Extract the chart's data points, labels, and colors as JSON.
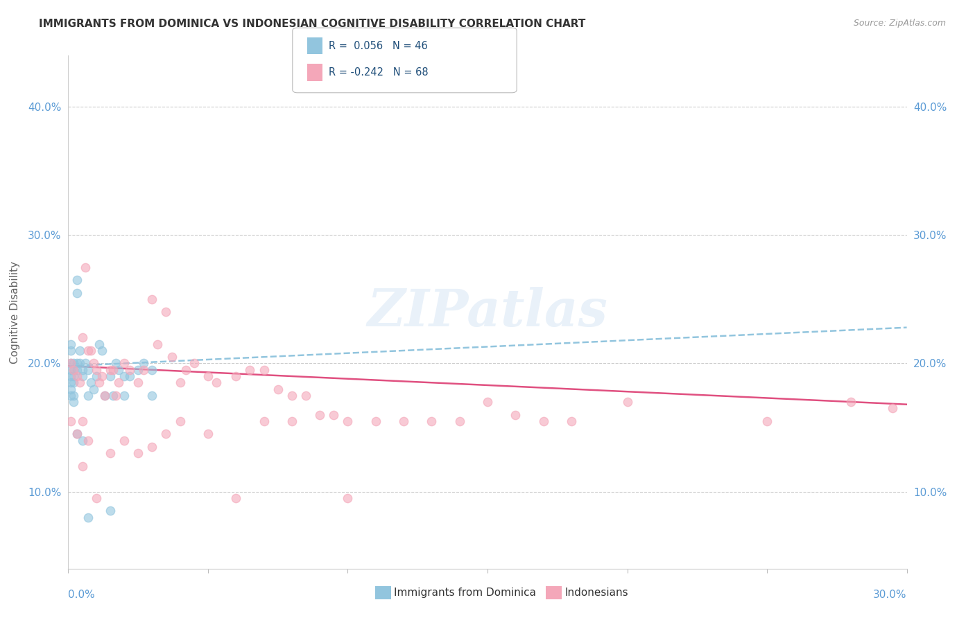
{
  "title": "IMMIGRANTS FROM DOMINICA VS INDONESIAN COGNITIVE DISABILITY CORRELATION CHART",
  "source": "Source: ZipAtlas.com",
  "ylabel": "Cognitive Disability",
  "yticks": [
    0.1,
    0.2,
    0.3,
    0.4
  ],
  "ytick_labels": [
    "10.0%",
    "20.0%",
    "30.0%",
    "40.0%"
  ],
  "xmin": 0.0,
  "xmax": 0.3,
  "ymin": 0.04,
  "ymax": 0.44,
  "legend_r1": "R =  0.056",
  "legend_n1": "N = 46",
  "legend_r2": "R = -0.242",
  "legend_n2": "N = 68",
  "color_blue": "#92C5DE",
  "color_pink": "#F4A7B9",
  "trendline_blue_x0": 0.0,
  "trendline_blue_y0": 0.198,
  "trendline_blue_x1": 0.3,
  "trendline_blue_y1": 0.228,
  "trendline_pink_x0": 0.0,
  "trendline_pink_y0": 0.198,
  "trendline_pink_x1": 0.3,
  "trendline_pink_y1": 0.168,
  "watermark": "ZIPatlas",
  "blue_points": [
    [
      0.001,
      0.2
    ],
    [
      0.001,
      0.195
    ],
    [
      0.001,
      0.19
    ],
    [
      0.001,
      0.185
    ],
    [
      0.001,
      0.21
    ],
    [
      0.001,
      0.215
    ],
    [
      0.001,
      0.18
    ],
    [
      0.001,
      0.175
    ],
    [
      0.002,
      0.2
    ],
    [
      0.002,
      0.195
    ],
    [
      0.002,
      0.19
    ],
    [
      0.002,
      0.185
    ],
    [
      0.002,
      0.175
    ],
    [
      0.002,
      0.17
    ],
    [
      0.003,
      0.265
    ],
    [
      0.003,
      0.255
    ],
    [
      0.003,
      0.2
    ],
    [
      0.003,
      0.195
    ],
    [
      0.004,
      0.21
    ],
    [
      0.004,
      0.2
    ],
    [
      0.005,
      0.195
    ],
    [
      0.005,
      0.19
    ],
    [
      0.006,
      0.2
    ],
    [
      0.007,
      0.195
    ],
    [
      0.007,
      0.175
    ],
    [
      0.008,
      0.185
    ],
    [
      0.009,
      0.18
    ],
    [
      0.01,
      0.19
    ],
    [
      0.011,
      0.215
    ],
    [
      0.012,
      0.21
    ],
    [
      0.013,
      0.175
    ],
    [
      0.015,
      0.19
    ],
    [
      0.016,
      0.175
    ],
    [
      0.017,
      0.2
    ],
    [
      0.018,
      0.195
    ],
    [
      0.02,
      0.19
    ],
    [
      0.022,
      0.19
    ],
    [
      0.025,
      0.195
    ],
    [
      0.027,
      0.2
    ],
    [
      0.03,
      0.195
    ],
    [
      0.003,
      0.145
    ],
    [
      0.005,
      0.14
    ],
    [
      0.007,
      0.08
    ],
    [
      0.015,
      0.085
    ],
    [
      0.02,
      0.175
    ],
    [
      0.03,
      0.175
    ]
  ],
  "pink_points": [
    [
      0.001,
      0.2
    ],
    [
      0.002,
      0.195
    ],
    [
      0.003,
      0.19
    ],
    [
      0.004,
      0.185
    ],
    [
      0.005,
      0.22
    ],
    [
      0.005,
      0.155
    ],
    [
      0.006,
      0.275
    ],
    [
      0.007,
      0.21
    ],
    [
      0.008,
      0.21
    ],
    [
      0.009,
      0.2
    ],
    [
      0.01,
      0.195
    ],
    [
      0.011,
      0.185
    ],
    [
      0.012,
      0.19
    ],
    [
      0.013,
      0.175
    ],
    [
      0.015,
      0.195
    ],
    [
      0.016,
      0.195
    ],
    [
      0.017,
      0.175
    ],
    [
      0.018,
      0.185
    ],
    [
      0.02,
      0.2
    ],
    [
      0.022,
      0.195
    ],
    [
      0.025,
      0.185
    ],
    [
      0.027,
      0.195
    ],
    [
      0.03,
      0.25
    ],
    [
      0.032,
      0.215
    ],
    [
      0.035,
      0.24
    ],
    [
      0.037,
      0.205
    ],
    [
      0.04,
      0.185
    ],
    [
      0.042,
      0.195
    ],
    [
      0.045,
      0.2
    ],
    [
      0.05,
      0.19
    ],
    [
      0.053,
      0.185
    ],
    [
      0.06,
      0.19
    ],
    [
      0.065,
      0.195
    ],
    [
      0.07,
      0.195
    ],
    [
      0.075,
      0.18
    ],
    [
      0.08,
      0.175
    ],
    [
      0.085,
      0.175
    ],
    [
      0.09,
      0.16
    ],
    [
      0.095,
      0.16
    ],
    [
      0.1,
      0.155
    ],
    [
      0.11,
      0.155
    ],
    [
      0.12,
      0.155
    ],
    [
      0.13,
      0.155
    ],
    [
      0.14,
      0.155
    ],
    [
      0.15,
      0.17
    ],
    [
      0.16,
      0.16
    ],
    [
      0.17,
      0.155
    ],
    [
      0.18,
      0.155
    ],
    [
      0.001,
      0.155
    ],
    [
      0.003,
      0.145
    ],
    [
      0.005,
      0.12
    ],
    [
      0.007,
      0.14
    ],
    [
      0.01,
      0.095
    ],
    [
      0.015,
      0.13
    ],
    [
      0.02,
      0.14
    ],
    [
      0.025,
      0.13
    ],
    [
      0.03,
      0.135
    ],
    [
      0.035,
      0.145
    ],
    [
      0.04,
      0.155
    ],
    [
      0.05,
      0.145
    ],
    [
      0.06,
      0.095
    ],
    [
      0.07,
      0.155
    ],
    [
      0.08,
      0.155
    ],
    [
      0.1,
      0.095
    ],
    [
      0.2,
      0.17
    ],
    [
      0.25,
      0.155
    ],
    [
      0.28,
      0.17
    ],
    [
      0.295,
      0.165
    ]
  ]
}
